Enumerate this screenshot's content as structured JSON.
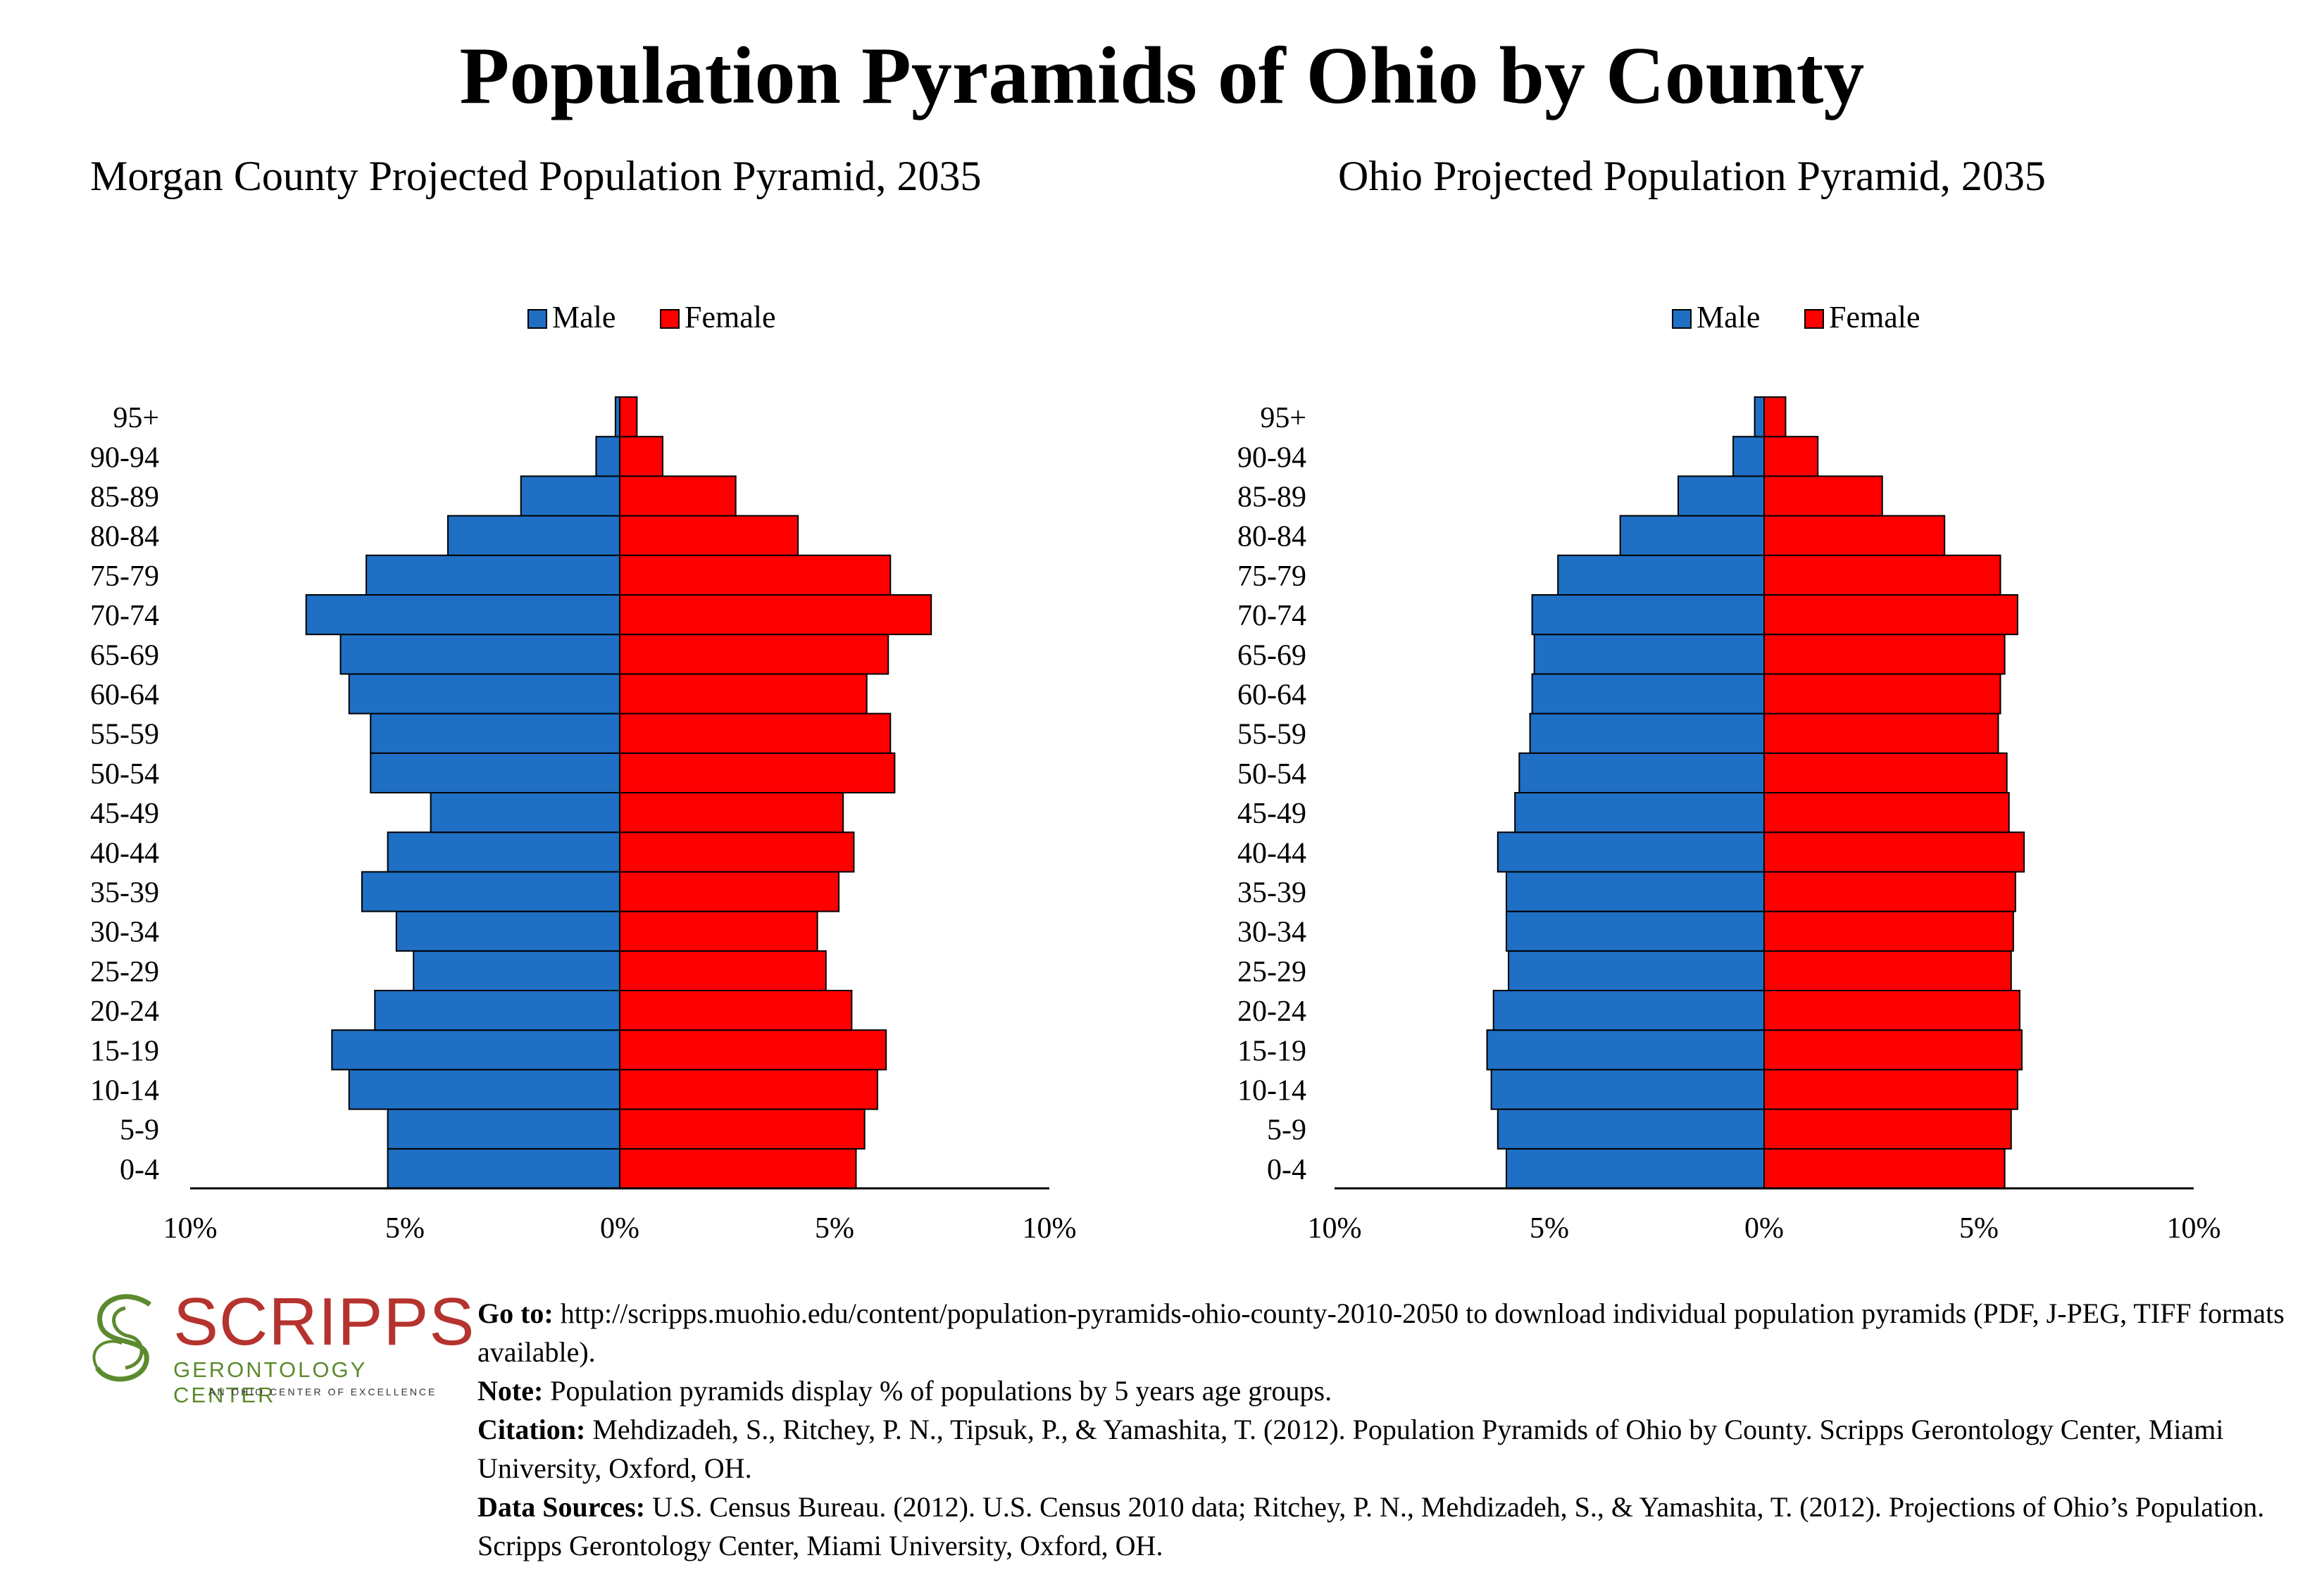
{
  "title": "Population Pyramids of Ohio by County",
  "legend": {
    "male": "Male",
    "female": "Female"
  },
  "colors": {
    "male": "#1f6fc4",
    "female": "#ff0000",
    "axis": "#000000"
  },
  "chart_data": [
    {
      "type": "bar",
      "orientation": "horizontal",
      "title": "Morgan County Projected Population Pyramid, 2035",
      "categories": [
        "0-4",
        "5-9",
        "10-14",
        "15-19",
        "20-24",
        "25-29",
        "30-34",
        "35-39",
        "40-44",
        "45-49",
        "50-54",
        "55-59",
        "60-64",
        "65-69",
        "70-74",
        "75-79",
        "80-84",
        "85-89",
        "90-94",
        "95+"
      ],
      "series": [
        {
          "name": "Male",
          "values": [
            5.4,
            5.4,
            6.3,
            6.7,
            5.7,
            4.8,
            5.2,
            6.0,
            5.4,
            4.4,
            5.8,
            5.8,
            6.3,
            6.5,
            7.3,
            5.9,
            4.0,
            2.3,
            0.55,
            0.1
          ]
        },
        {
          "name": "Female",
          "values": [
            5.5,
            5.7,
            6.0,
            6.2,
            5.4,
            4.8,
            4.6,
            5.1,
            5.45,
            5.2,
            6.4,
            6.3,
            5.75,
            6.25,
            7.25,
            6.3,
            4.15,
            2.7,
            1.0,
            0.4
          ]
        }
      ],
      "tick_labels": [
        "10%",
        "5%",
        "0%",
        "5%",
        "10%"
      ],
      "xlim": [
        -10,
        10
      ],
      "legend_position": "top-center",
      "grid": false
    },
    {
      "type": "bar",
      "orientation": "horizontal",
      "title": "Ohio Projected Population Pyramid, 2035",
      "categories": [
        "0-4",
        "5-9",
        "10-14",
        "15-19",
        "20-24",
        "25-29",
        "30-34",
        "35-39",
        "40-44",
        "45-49",
        "50-54",
        "55-59",
        "60-64",
        "65-69",
        "70-74",
        "75-79",
        "80-84",
        "85-89",
        "90-94",
        "95+"
      ],
      "series": [
        {
          "name": "Male",
          "values": [
            6.0,
            6.2,
            6.35,
            6.45,
            6.3,
            5.95,
            6.0,
            6.0,
            6.2,
            5.8,
            5.7,
            5.45,
            5.4,
            5.35,
            5.4,
            4.8,
            3.35,
            2.0,
            0.72,
            0.22
          ]
        },
        {
          "name": "Female",
          "values": [
            5.6,
            5.75,
            5.9,
            6.0,
            5.95,
            5.75,
            5.8,
            5.85,
            6.05,
            5.7,
            5.65,
            5.45,
            5.5,
            5.6,
            5.9,
            5.5,
            4.2,
            2.75,
            1.25,
            0.5
          ]
        }
      ],
      "tick_labels": [
        "10%",
        "5%",
        "0%",
        "5%",
        "10%"
      ],
      "xlim": [
        -10,
        10
      ],
      "legend_position": "top-center",
      "grid": false
    }
  ],
  "logo": {
    "wordmark": "SCRIPPS",
    "subtitle": "GERONTOLOGY CENTER",
    "tagline": "AN OHIO CENTER OF EXCELLENCE",
    "colors": {
      "wordmark": "#b5332e",
      "subtitle": "#5c8a2e"
    }
  },
  "footer": {
    "goto_label": "Go to:",
    "goto_text": " http://scripps.muohio.edu/content/population-pyramids-ohio-county-2010-2050 to download individual population pyramids (PDF, J-PEG, TIFF formats available).",
    "note_label": "Note:",
    "note_text": " Population pyramids display % of populations by 5 years age groups.",
    "citation_label": "Citation:",
    "citation_text": " Mehdizadeh, S., Ritchey, P. N., Tipsuk, P., & Yamashita, T. (2012). Population Pyramids of Ohio by County. Scripps Gerontology Center, Miami University, Oxford, OH.",
    "sources_label": "Data Sources:",
    "sources_text": " U.S. Census Bureau. (2012). U.S. Census 2010 data; Ritchey, P. N., Mehdizadeh, S., & Yamashita, T. (2012). Projections of Ohio’s Population. Scripps Gerontology Center, Miami University, Oxford, OH."
  }
}
